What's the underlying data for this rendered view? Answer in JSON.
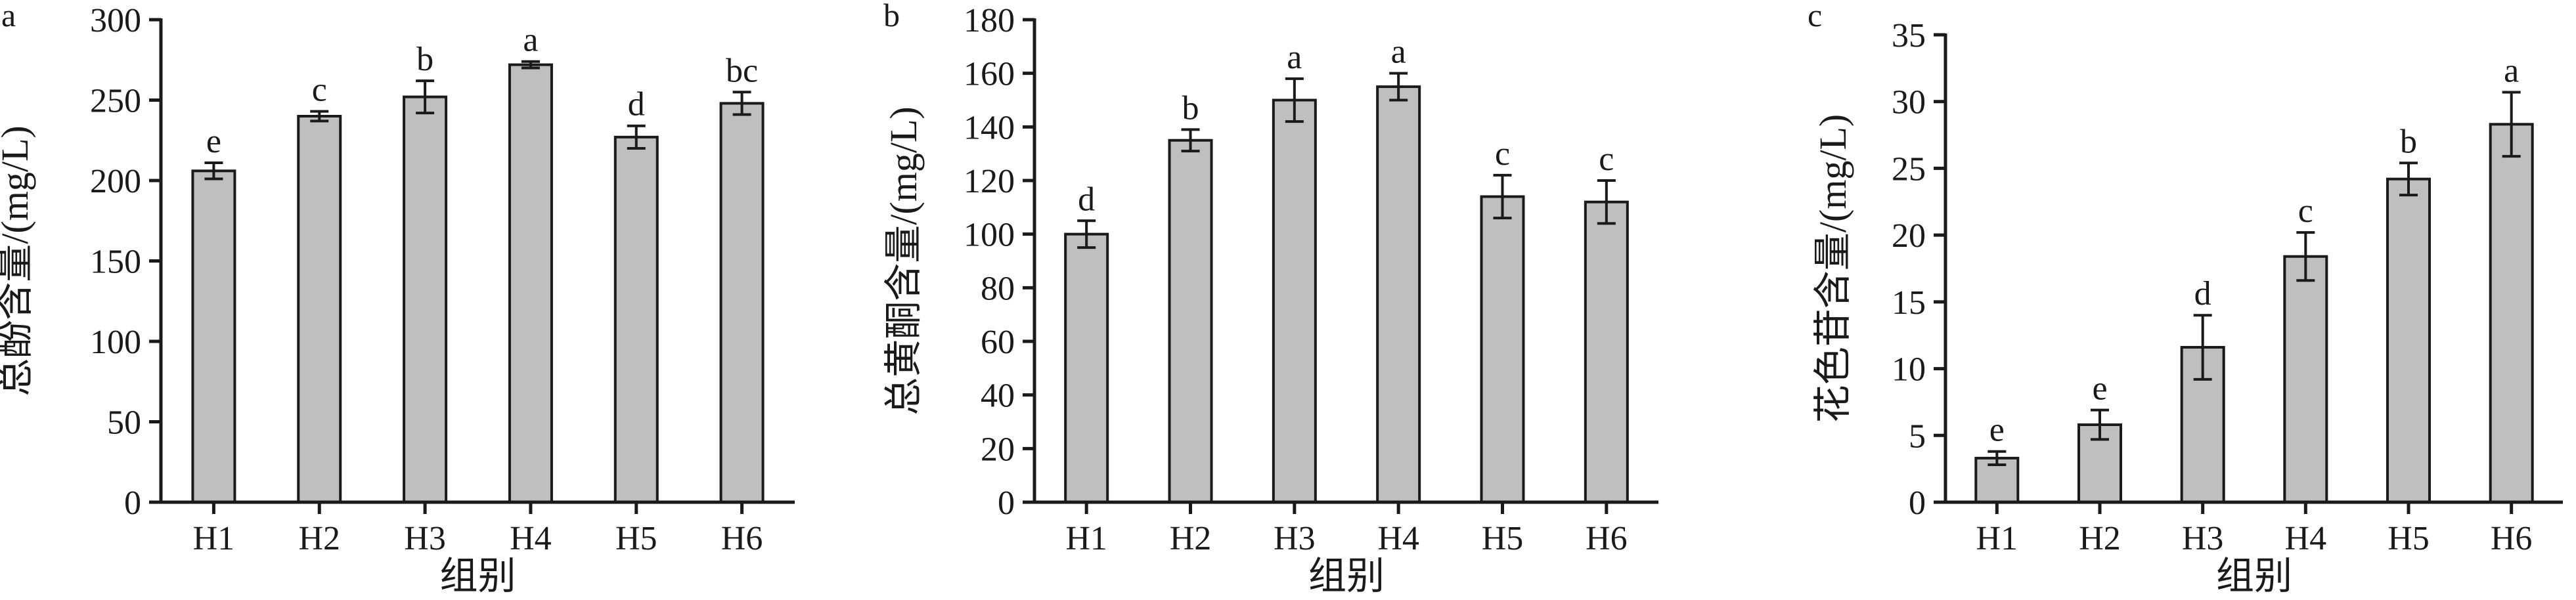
{
  "chart_data": [
    {
      "type": "bar",
      "panel": "a",
      "categories": [
        "H1",
        "H2",
        "H3",
        "H4",
        "H5",
        "H6"
      ],
      "values": [
        206,
        240,
        252,
        272,
        227,
        248
      ],
      "errors": [
        5,
        3,
        10,
        2,
        7,
        7
      ],
      "significance": [
        "e",
        "c",
        "b",
        "a",
        "d",
        "bc"
      ],
      "xlabel": "组别",
      "ylabel": "总酚含量/(mg/L)",
      "ylim": [
        0,
        300
      ],
      "yticks": [
        0,
        50,
        100,
        150,
        200,
        250,
        300
      ],
      "bar_color": "#bfbfbf"
    },
    {
      "type": "bar",
      "panel": "b",
      "categories": [
        "H1",
        "H2",
        "H3",
        "H4",
        "H5",
        "H6"
      ],
      "values": [
        100,
        135,
        150,
        155,
        114,
        112
      ],
      "errors": [
        5,
        4,
        8,
        5,
        8,
        8
      ],
      "significance": [
        "d",
        "b",
        "a",
        "a",
        "c",
        "c"
      ],
      "xlabel": "组别",
      "ylabel": "总黄酮含量/(mg/L)",
      "ylim": [
        0,
        180
      ],
      "yticks": [
        0,
        20,
        40,
        60,
        80,
        100,
        120,
        140,
        160,
        180
      ],
      "bar_color": "#bfbfbf"
    },
    {
      "type": "bar",
      "panel": "c",
      "categories": [
        "H1",
        "H2",
        "H3",
        "H4",
        "H5",
        "H6"
      ],
      "values": [
        3.3,
        5.8,
        11.6,
        18.4,
        24.2,
        28.3
      ],
      "errors": [
        0.5,
        1.1,
        2.4,
        1.8,
        1.2,
        2.4
      ],
      "significance": [
        "e",
        "e",
        "d",
        "c",
        "b",
        "a"
      ],
      "xlabel": "组别",
      "ylabel": "花色苷含量/(mg/L)",
      "ylim": [
        0,
        35
      ],
      "yticks": [
        0,
        5,
        10,
        15,
        20,
        25,
        30,
        35
      ],
      "bar_color": "#bfbfbf"
    }
  ]
}
